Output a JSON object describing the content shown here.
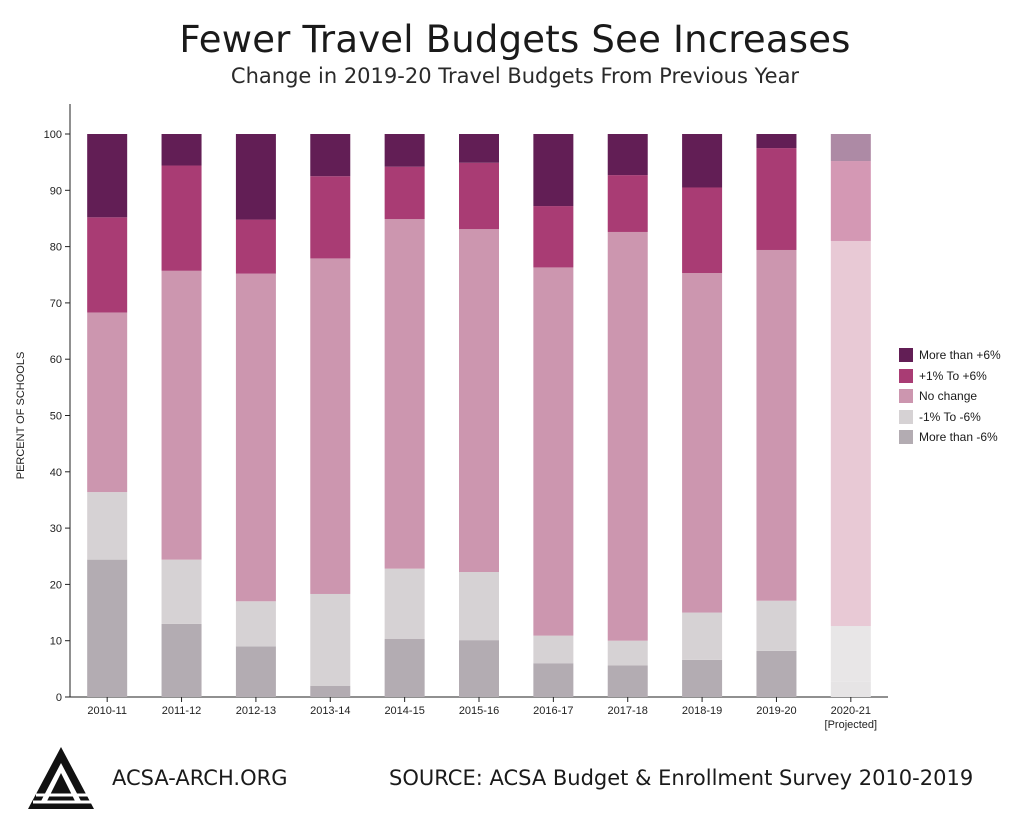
{
  "title": "Fewer Travel Budgets See Increases",
  "subtitle": "Change in 2019-20 Travel Budgets From Previous Year",
  "footer": {
    "site": "ACSA-ARCH.ORG",
    "source": "SOURCE: ACSA Budget & Enrollment Survey 2010-2019"
  },
  "chart_data": {
    "type": "bar",
    "stacked": true,
    "ylabel": "PERCENT OF SCHOOLS",
    "xlabel": "",
    "ylim": [
      0,
      100
    ],
    "yticks": [
      0,
      10,
      20,
      30,
      40,
      50,
      60,
      70,
      80,
      90,
      100
    ],
    "grid": false,
    "legend_position": "right",
    "categories": [
      "2010-11",
      "2011-12",
      "2012-13",
      "2013-14",
      "2014-15",
      "2015-16",
      "2016-17",
      "2017-18",
      "2018-19",
      "2019-20",
      "2020-21"
    ],
    "category_notes": [
      "",
      "",
      "",
      "",
      "",
      "",
      "",
      "",
      "",
      "",
      "[Projected]"
    ],
    "series": [
      {
        "name": "More than -6%",
        "color": "#b3acb2",
        "values": [
          24.4,
          13.0,
          9.0,
          2.0,
          10.3,
          10.1,
          6.0,
          5.6,
          6.6,
          8.2,
          2.8
        ]
      },
      {
        "name": "-1% To -6%",
        "color": "#d6d2d4",
        "values": [
          12.0,
          11.4,
          8.0,
          16.3,
          12.5,
          12.1,
          4.9,
          4.4,
          8.4,
          8.9,
          9.8
        ]
      },
      {
        "name": "No change",
        "color": "#cc96af",
        "values": [
          31.9,
          51.3,
          58.2,
          59.6,
          62.1,
          60.9,
          65.4,
          72.6,
          60.3,
          62.3,
          68.4
        ]
      },
      {
        "name": "+1% To +6%",
        "color": "#a93c74",
        "values": [
          16.9,
          18.7,
          9.6,
          14.6,
          9.3,
          11.8,
          10.9,
          10.1,
          15.2,
          18.1,
          14.2
        ]
      },
      {
        "name": "More than +6%",
        "color": "#621e55",
        "values": [
          14.8,
          5.6,
          15.2,
          7.5,
          5.8,
          5.1,
          12.8,
          7.3,
          9.5,
          2.5,
          4.8
        ]
      }
    ],
    "projected_colors": [
      "#e6e4e5",
      "#e8e6e7",
      "#e8c9d5",
      "#d498b4",
      "#ad8aa5"
    ],
    "legend": [
      "More than +6%",
      "+1% To +6%",
      "No change",
      "-1% To -6%",
      "More than -6%"
    ]
  }
}
